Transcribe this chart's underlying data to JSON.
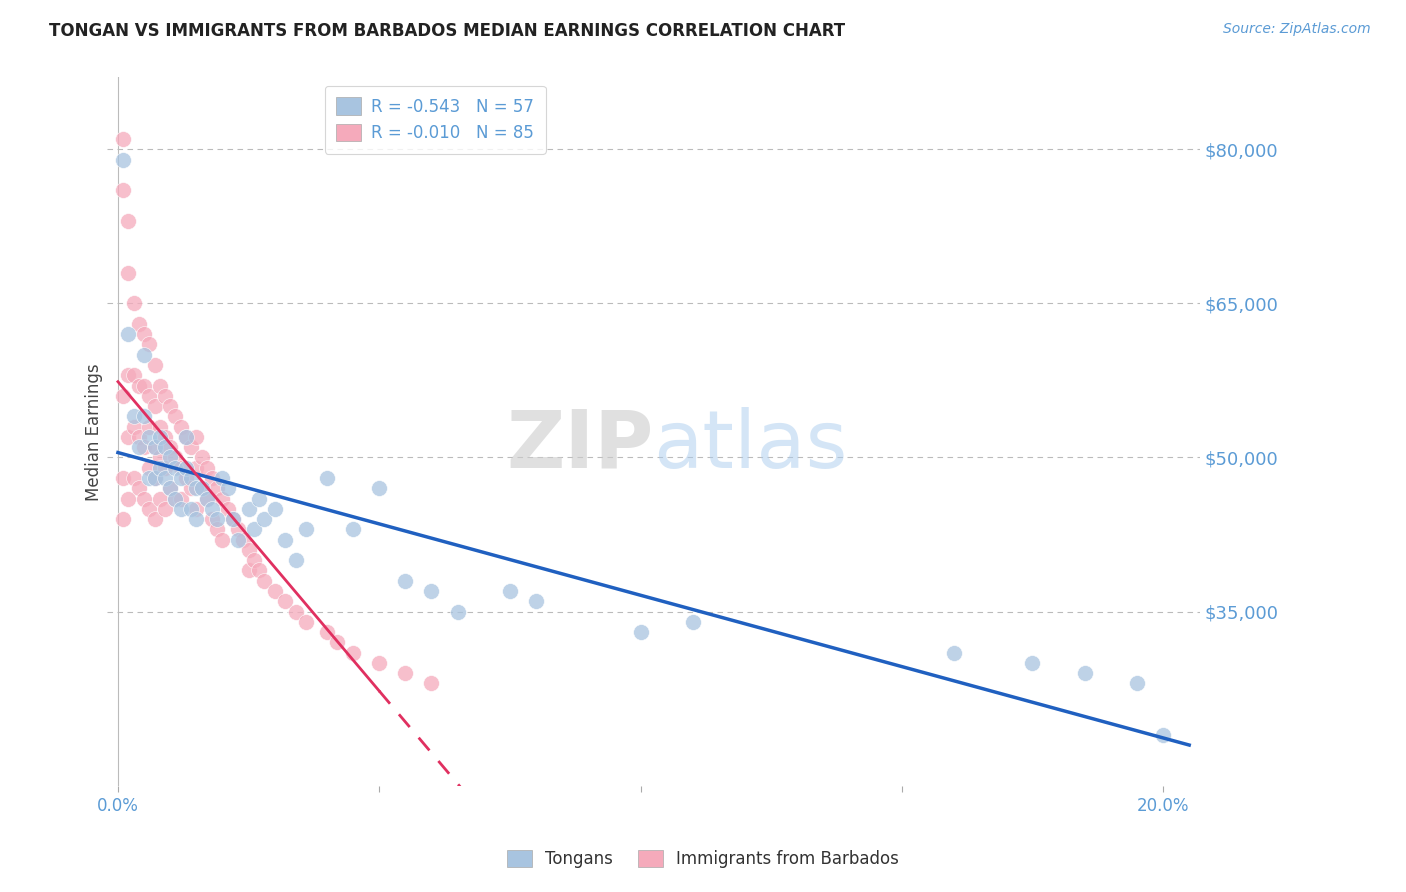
{
  "title": "TONGAN VS IMMIGRANTS FROM BARBADOS MEDIAN EARNINGS CORRELATION CHART",
  "source": "Source: ZipAtlas.com",
  "ylabel_label": "Median Earnings",
  "x_ticks": [
    0.0,
    0.05,
    0.1,
    0.15,
    0.2
  ],
  "x_tick_labels": [
    "0.0%",
    "",
    "",
    "",
    "20.0%"
  ],
  "y_ticks": [
    35000,
    50000,
    65000,
    80000
  ],
  "y_tick_labels": [
    "$35,000",
    "$50,000",
    "$65,000",
    "$80,000"
  ],
  "ylim": [
    18000,
    87000
  ],
  "xlim": [
    -0.002,
    0.207
  ],
  "tongan_R": -0.543,
  "tongan_N": 57,
  "barbados_R": -0.01,
  "barbados_N": 85,
  "tongan_color": "#a8c4e0",
  "barbados_color": "#f5aabb",
  "tongan_line_color": "#2060c0",
  "barbados_line_color": "#e03060",
  "background_color": "#ffffff",
  "tongan_x": [
    0.001,
    0.002,
    0.003,
    0.004,
    0.005,
    0.005,
    0.006,
    0.006,
    0.007,
    0.007,
    0.008,
    0.008,
    0.009,
    0.009,
    0.01,
    0.01,
    0.011,
    0.011,
    0.012,
    0.012,
    0.013,
    0.013,
    0.014,
    0.014,
    0.015,
    0.015,
    0.016,
    0.017,
    0.018,
    0.019,
    0.02,
    0.021,
    0.022,
    0.023,
    0.025,
    0.026,
    0.027,
    0.028,
    0.03,
    0.032,
    0.034,
    0.036,
    0.04,
    0.045,
    0.05,
    0.055,
    0.06,
    0.065,
    0.075,
    0.08,
    0.1,
    0.11,
    0.16,
    0.175,
    0.185,
    0.195,
    0.2
  ],
  "tongan_y": [
    79000,
    62000,
    54000,
    51000,
    60000,
    54000,
    52000,
    48000,
    51000,
    48000,
    52000,
    49000,
    51000,
    48000,
    50000,
    47000,
    49000,
    46000,
    48000,
    45000,
    52000,
    49000,
    48000,
    45000,
    47000,
    44000,
    47000,
    46000,
    45000,
    44000,
    48000,
    47000,
    44000,
    42000,
    45000,
    43000,
    46000,
    44000,
    45000,
    42000,
    40000,
    43000,
    48000,
    43000,
    47000,
    38000,
    37000,
    35000,
    37000,
    36000,
    33000,
    34000,
    31000,
    30000,
    29000,
    28000,
    23000
  ],
  "barbados_x": [
    0.001,
    0.001,
    0.001,
    0.001,
    0.001,
    0.002,
    0.002,
    0.002,
    0.002,
    0.002,
    0.003,
    0.003,
    0.003,
    0.003,
    0.004,
    0.004,
    0.004,
    0.004,
    0.005,
    0.005,
    0.005,
    0.005,
    0.006,
    0.006,
    0.006,
    0.006,
    0.006,
    0.007,
    0.007,
    0.007,
    0.007,
    0.007,
    0.008,
    0.008,
    0.008,
    0.008,
    0.009,
    0.009,
    0.009,
    0.009,
    0.01,
    0.01,
    0.01,
    0.011,
    0.011,
    0.011,
    0.012,
    0.012,
    0.012,
    0.013,
    0.013,
    0.014,
    0.014,
    0.015,
    0.015,
    0.015,
    0.016,
    0.016,
    0.017,
    0.017,
    0.018,
    0.018,
    0.019,
    0.019,
    0.02,
    0.02,
    0.021,
    0.022,
    0.023,
    0.024,
    0.025,
    0.025,
    0.026,
    0.027,
    0.028,
    0.03,
    0.032,
    0.034,
    0.036,
    0.04,
    0.042,
    0.045,
    0.05,
    0.055,
    0.06
  ],
  "barbados_y": [
    81000,
    76000,
    56000,
    48000,
    44000,
    73000,
    68000,
    58000,
    52000,
    46000,
    65000,
    58000,
    53000,
    48000,
    63000,
    57000,
    52000,
    47000,
    62000,
    57000,
    51000,
    46000,
    61000,
    56000,
    53000,
    49000,
    45000,
    59000,
    55000,
    51000,
    48000,
    44000,
    57000,
    53000,
    50000,
    46000,
    56000,
    52000,
    49000,
    45000,
    55000,
    51000,
    47000,
    54000,
    50000,
    46000,
    53000,
    49000,
    46000,
    52000,
    48000,
    51000,
    47000,
    52000,
    49000,
    45000,
    50000,
    47000,
    49000,
    46000,
    48000,
    44000,
    47000,
    43000,
    46000,
    42000,
    45000,
    44000,
    43000,
    42000,
    41000,
    39000,
    40000,
    39000,
    38000,
    37000,
    36000,
    35000,
    34000,
    33000,
    32000,
    31000,
    30000,
    29000,
    28000
  ]
}
